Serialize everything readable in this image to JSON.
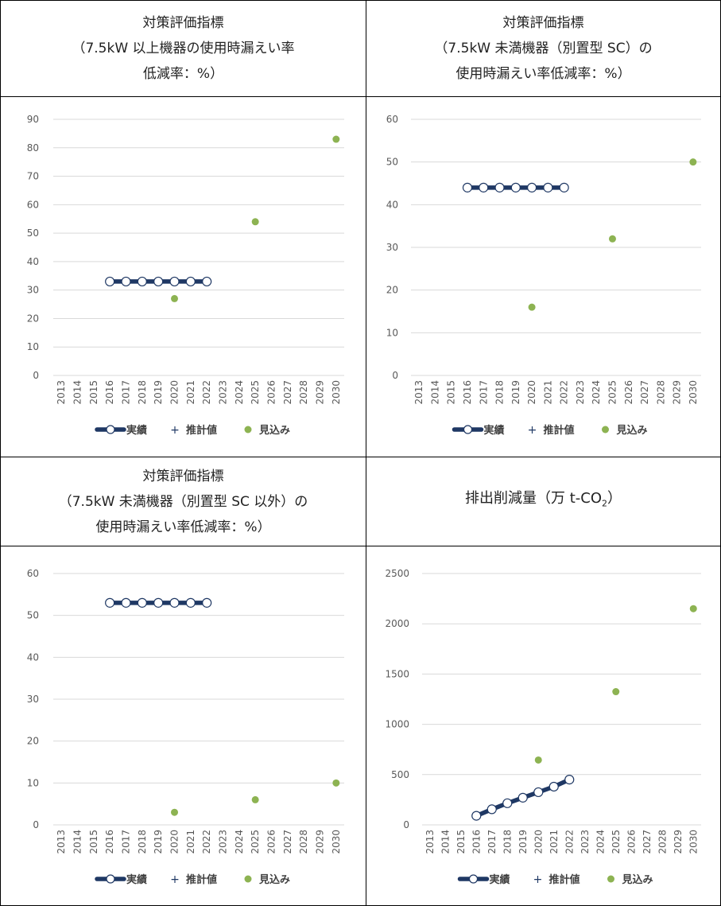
{
  "legend": {
    "actual": "実績",
    "estimated": "推計値",
    "projected": "見込み"
  },
  "panels": [
    {
      "header_lines": [
        "対策評価指標",
        "（7.5kW 以上機器の使用時漏えい率",
        "低減率：%）"
      ]
    },
    {
      "header_lines": [
        "対策評価指標",
        "（7.5kW 未満機器（別置型 SC）の",
        "使用時漏えい率低減率：%）"
      ]
    },
    {
      "header_lines": [
        "対策評価指標",
        "（7.5kW 未満機器（別置型 SC 以外）の",
        "使用時漏えい率低減率：%）"
      ]
    },
    {
      "header_main": "排出削減量（万 t-CO",
      "header_sub": "2",
      "header_tail": "）"
    }
  ],
  "colors": {
    "actual_line": "#1f3864",
    "projected_marker": "#8db352",
    "gridline": "#d9d9d9",
    "tick_text": "#595959"
  },
  "chart_data": [
    {
      "type": "line",
      "x": [
        "2013",
        "2014",
        "2015",
        "2016",
        "2017",
        "2018",
        "2019",
        "2020",
        "2021",
        "2022",
        "2023",
        "2024",
        "2025",
        "2026",
        "2027",
        "2028",
        "2029",
        "2030"
      ],
      "ylim": [
        0,
        90
      ],
      "yticks": [
        0,
        10,
        20,
        30,
        40,
        50,
        60,
        70,
        80,
        90
      ],
      "series": [
        {
          "name": "実績",
          "points": [
            [
              "2016",
              33
            ],
            [
              "2017",
              33
            ],
            [
              "2018",
              33
            ],
            [
              "2019",
              33
            ],
            [
              "2020",
              33
            ],
            [
              "2021",
              33
            ],
            [
              "2022",
              33
            ]
          ]
        },
        {
          "name": "推計値",
          "points": []
        },
        {
          "name": "見込み",
          "points": [
            [
              "2020",
              27
            ],
            [
              "2025",
              54
            ],
            [
              "2030",
              83
            ]
          ]
        }
      ],
      "grid": true,
      "legend_position": "bottom"
    },
    {
      "type": "line",
      "x": [
        "2013",
        "2014",
        "2015",
        "2016",
        "2017",
        "2018",
        "2019",
        "2020",
        "2021",
        "2022",
        "2023",
        "2024",
        "2025",
        "2026",
        "2027",
        "2028",
        "2029",
        "2030"
      ],
      "ylim": [
        0,
        60
      ],
      "yticks": [
        0,
        10,
        20,
        30,
        40,
        50,
        60
      ],
      "series": [
        {
          "name": "実績",
          "points": [
            [
              "2016",
              44
            ],
            [
              "2017",
              44
            ],
            [
              "2018",
              44
            ],
            [
              "2019",
              44
            ],
            [
              "2020",
              44
            ],
            [
              "2021",
              44
            ],
            [
              "2022",
              44
            ]
          ]
        },
        {
          "name": "推計値",
          "points": []
        },
        {
          "name": "見込み",
          "points": [
            [
              "2020",
              16
            ],
            [
              "2025",
              32
            ],
            [
              "2030",
              50
            ]
          ]
        }
      ],
      "grid": true,
      "legend_position": "bottom"
    },
    {
      "type": "line",
      "x": [
        "2013",
        "2014",
        "2015",
        "2016",
        "2017",
        "2018",
        "2019",
        "2020",
        "2021",
        "2022",
        "2023",
        "2024",
        "2025",
        "2026",
        "2027",
        "2028",
        "2029",
        "2030"
      ],
      "ylim": [
        0,
        60
      ],
      "yticks": [
        0,
        10,
        20,
        30,
        40,
        50,
        60
      ],
      "series": [
        {
          "name": "実績",
          "points": [
            [
              "2016",
              53
            ],
            [
              "2017",
              53
            ],
            [
              "2018",
              53
            ],
            [
              "2019",
              53
            ],
            [
              "2020",
              53
            ],
            [
              "2021",
              53
            ],
            [
              "2022",
              53
            ]
          ]
        },
        {
          "name": "推計値",
          "points": []
        },
        {
          "name": "見込み",
          "points": [
            [
              "2020",
              3
            ],
            [
              "2025",
              6
            ],
            [
              "2030",
              10
            ]
          ]
        }
      ],
      "grid": true,
      "legend_position": "bottom"
    },
    {
      "type": "line",
      "x": [
        "2013",
        "2014",
        "2015",
        "2016",
        "2017",
        "2018",
        "2019",
        "2020",
        "2021",
        "2022",
        "2023",
        "2024",
        "2025",
        "2026",
        "2027",
        "2028",
        "2029",
        "2030"
      ],
      "ylim": [
        0,
        2500
      ],
      "yticks": [
        0,
        500,
        1000,
        1500,
        2000,
        2500
      ],
      "series": [
        {
          "name": "実績",
          "points": [
            [
              "2016",
              90
            ],
            [
              "2017",
              155
            ],
            [
              "2018",
              215
            ],
            [
              "2019",
              270
            ],
            [
              "2020",
              325
            ],
            [
              "2021",
              380
            ],
            [
              "2022",
              450
            ]
          ]
        },
        {
          "name": "推計値",
          "points": []
        },
        {
          "name": "見込み",
          "points": [
            [
              "2020",
              645
            ],
            [
              "2025",
              1325
            ],
            [
              "2030",
              2150
            ]
          ]
        }
      ],
      "grid": true,
      "legend_position": "bottom"
    }
  ]
}
